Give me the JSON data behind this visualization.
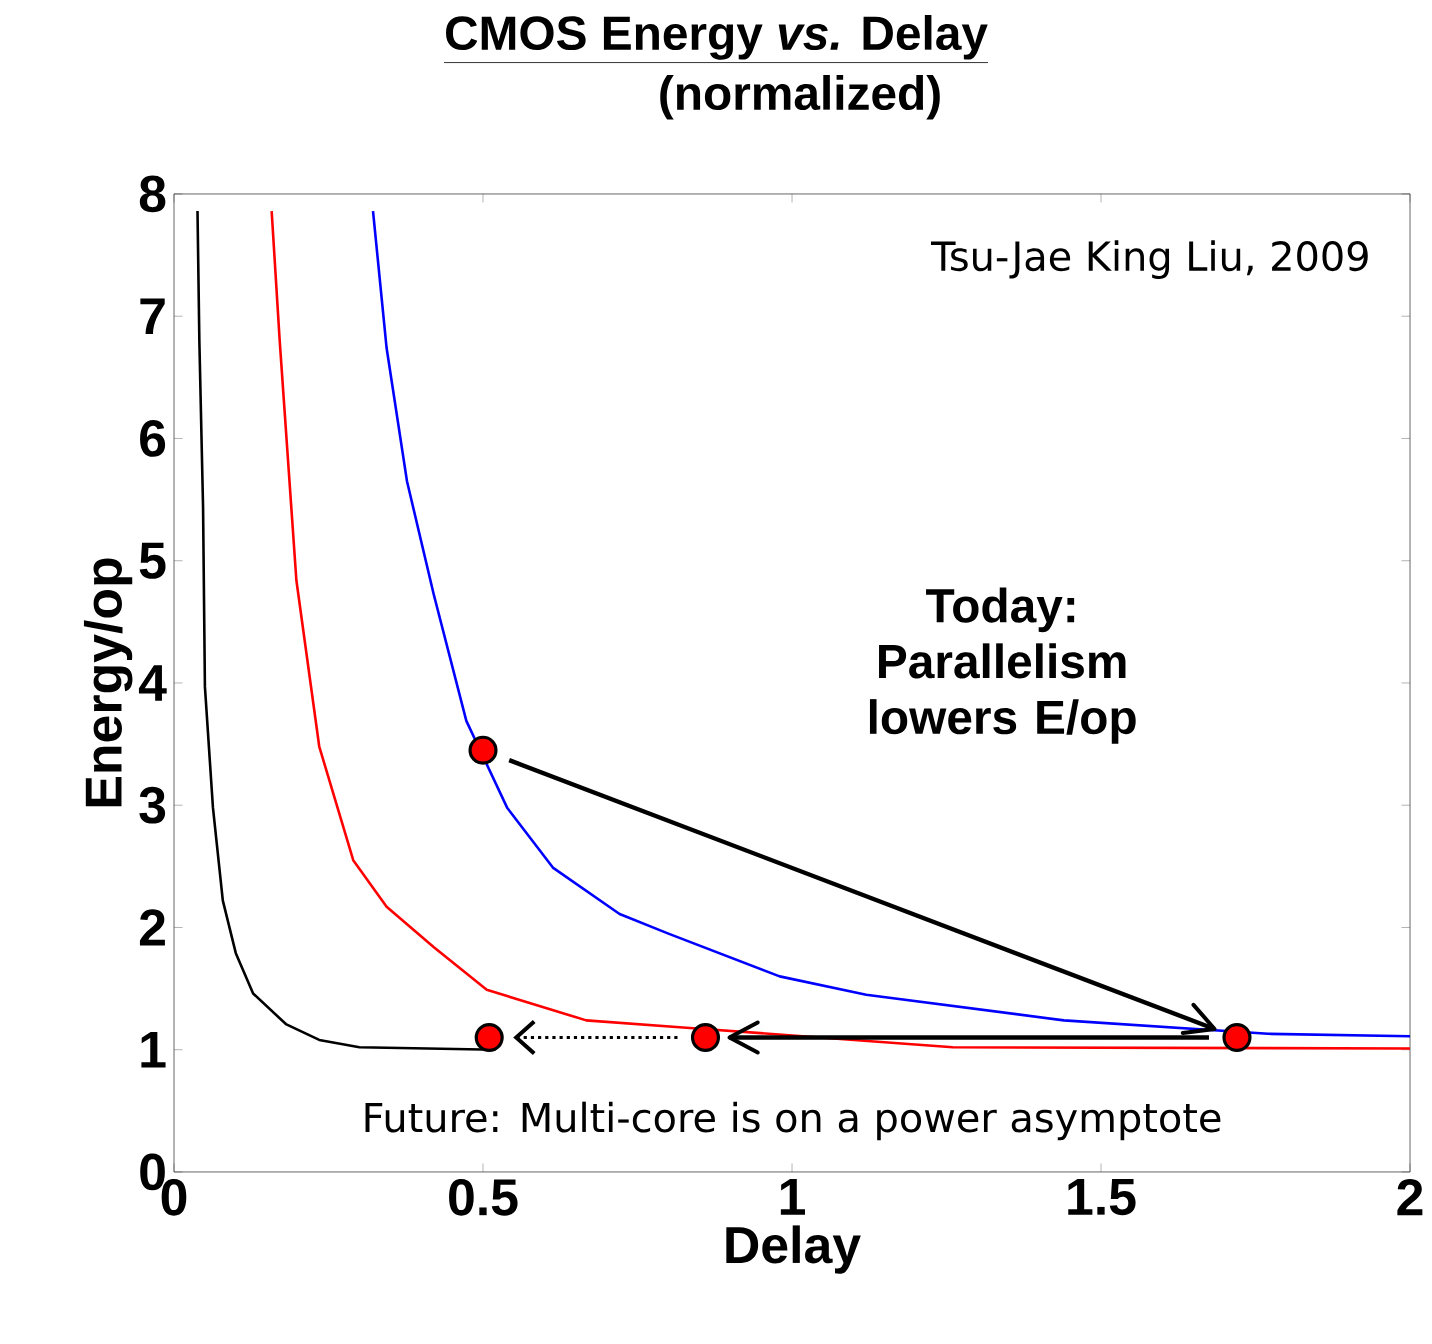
{
  "chart_data": {
    "type": "line",
    "title": "CMOS Energy *vs.* Delay",
    "subtitle": "(normalized)",
    "xlabel": "Delay",
    "ylabel": "Energy/op",
    "annotations": [
      "Tsu-Jae King Liu, 2009",
      "Today: Parallelism lowers E/op",
      "Future: Multi-core is on a power asymptote"
    ],
    "xlim": [
      0,
      2
    ],
    "ylim": [
      0,
      8
    ],
    "xticks": [
      0,
      0.5,
      1,
      1.5,
      2
    ],
    "yticks": [
      0,
      1,
      2,
      3,
      4,
      5,
      6,
      7,
      8
    ],
    "grid": false,
    "series": [
      {
        "type": "line",
        "color": "#000000",
        "x": [
          0.038,
          0.041,
          0.047,
          0.05,
          0.063,
          0.079,
          0.1,
          0.128,
          0.181,
          0.235,
          0.3,
          0.52
        ],
        "values": [
          7.86,
          6.8,
          5.44,
          3.97,
          2.98,
          2.22,
          1.79,
          1.46,
          1.21,
          1.08,
          1.02,
          1.0
        ]
      },
      {
        "type": "line",
        "color": "#ff0000",
        "x": [
          0.158,
          0.171,
          0.198,
          0.235,
          0.29,
          0.344,
          0.42,
          0.506,
          0.667,
          0.829,
          1.0,
          1.26,
          2.0
        ],
        "values": [
          7.86,
          6.8,
          4.84,
          3.48,
          2.55,
          2.17,
          1.84,
          1.49,
          1.24,
          1.18,
          null,
          1.02,
          1.01
        ]
      },
      {
        "type": "line",
        "color": "#0000ff",
        "x": [
          0.322,
          0.344,
          0.377,
          0.42,
          0.473,
          0.5,
          0.539,
          0.613,
          0.721,
          0.8,
          0.98,
          1.12,
          1.44,
          1.77,
          2.0
        ],
        "values": [
          7.86,
          6.74,
          5.65,
          4.73,
          3.69,
          null,
          2.98,
          2.49,
          2.11,
          1.95,
          1.6,
          1.45,
          1.24,
          1.13,
          1.11
        ]
      },
      {
        "type": "scatter",
        "color": "#ff0000",
        "marker": "circle",
        "x": [
          0.5,
          1.72,
          0.86,
          0.51
        ],
        "values": [
          3.45,
          1.1,
          1.1,
          1.1
        ]
      }
    ]
  }
}
